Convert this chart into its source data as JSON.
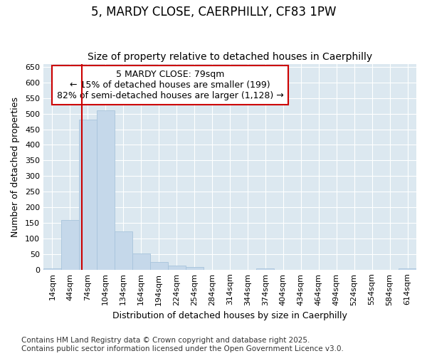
{
  "title": "5, MARDY CLOSE, CAERPHILLY, CF83 1PW",
  "subtitle": "Size of property relative to detached houses in Caerphilly",
  "xlabel": "Distribution of detached houses by size in Caerphilly",
  "ylabel": "Number of detached properties",
  "bin_labels": [
    "14sqm",
    "44sqm",
    "74sqm",
    "104sqm",
    "134sqm",
    "164sqm",
    "194sqm",
    "224sqm",
    "254sqm",
    "284sqm",
    "314sqm",
    "344sqm",
    "374sqm",
    "404sqm",
    "434sqm",
    "464sqm",
    "494sqm",
    "524sqm",
    "554sqm",
    "584sqm",
    "614sqm"
  ],
  "bar_values": [
    3,
    160,
    480,
    510,
    123,
    52,
    25,
    13,
    8,
    0,
    0,
    0,
    3,
    0,
    0,
    0,
    0,
    0,
    0,
    0,
    3
  ],
  "bar_color": "#c5d8ea",
  "bar_edgecolor": "#a8c4dc",
  "red_line_color": "#cc0000",
  "annotation_line1": "5 MARDY CLOSE: 79sqm",
  "annotation_line2": "← 15% of detached houses are smaller (199)",
  "annotation_line3": "82% of semi-detached houses are larger (1,128) →",
  "annotation_box_color": "#ffffff",
  "annotation_box_edgecolor": "#cc0000",
  "ylim": [
    0,
    660
  ],
  "yticks": [
    0,
    50,
    100,
    150,
    200,
    250,
    300,
    350,
    400,
    450,
    500,
    550,
    600,
    650
  ],
  "footer_line1": "Contains HM Land Registry data © Crown copyright and database right 2025.",
  "footer_line2": "Contains public sector information licensed under the Open Government Licence v3.0.",
  "bg_color": "#ffffff",
  "plot_bg_color": "#dce8f0",
  "grid_color": "#ffffff",
  "title_fontsize": 12,
  "subtitle_fontsize": 10,
  "xlabel_fontsize": 9,
  "ylabel_fontsize": 9,
  "tick_fontsize": 8,
  "footer_fontsize": 7.5,
  "annotation_fontsize": 9
}
